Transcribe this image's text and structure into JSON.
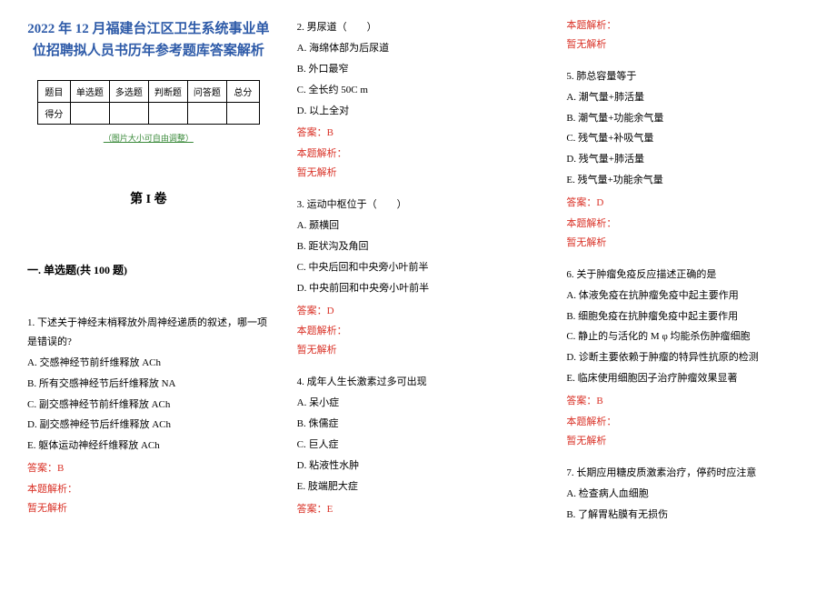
{
  "colors": {
    "title": "#2d5aa8",
    "caption": "#3a8a3a",
    "answer": "#d93025",
    "text": "#000000",
    "border": "#000000",
    "background": "#ffffff"
  },
  "title_line1": "2022 年 12 月福建台江区卫生系统事业单",
  "title_line2": "位招聘拟人员书历年参考题库答案解析",
  "score_table": {
    "cols": [
      "题目",
      "单选题",
      "多选题",
      "判断题",
      "问答题",
      "总分"
    ],
    "row2_label": "得分"
  },
  "caption": "（图片大小可自由调整）",
  "section_header": "第 I 卷",
  "subsection": "一. 单选题(共 100 题)",
  "answer_prefix": "答案：",
  "analysis_label": "本题解析：",
  "analysis_text": "暂无解析",
  "questions": [
    {
      "num": "1.",
      "text": "下述关于神经末梢释放外周神经递质的叙述，哪一项是错误的?",
      "options": [
        "A. 交感神经节前纤维释放 ACh",
        "B. 所有交感神经节后纤维释放 NA",
        "C. 副交感神经节前纤维释放 ACh",
        "D. 副交感神经节后纤维释放 ACh",
        "E. 躯体运动神经纤维释放 ACh"
      ],
      "answer": "B"
    },
    {
      "num": "2.",
      "text": "男尿道（　　）",
      "options": [
        "A. 海绵体部为后尿道",
        "B. 外口最窄",
        "C. 全长约 50C m",
        "D. 以上全对"
      ],
      "answer": "B"
    },
    {
      "num": "3.",
      "text": "运动中枢位于（　　）",
      "options": [
        "A. 颞横回",
        "B. 距状沟及角回",
        "C. 中央后回和中央旁小叶前半",
        "D. 中央前回和中央旁小叶前半"
      ],
      "answer": "D"
    },
    {
      "num": "4.",
      "text": "成年人生长激素过多可出现",
      "options": [
        "A. 呆小症",
        "B. 侏儒症",
        "C. 巨人症",
        "D. 粘液性水肿",
        "E. 肢端肥大症"
      ],
      "answer": "E"
    },
    {
      "num": "5.",
      "text": "肺总容量等于",
      "options": [
        "A. 潮气量+肺活量",
        "B. 潮气量+功能余气量",
        "C. 残气量+补吸气量",
        "D. 残气量+肺活量",
        "E. 残气量+功能余气量"
      ],
      "answer": "D"
    },
    {
      "num": "6.",
      "text": "关于肿瘤免疫反应描述正确的是",
      "options": [
        "A. 体液免疫在抗肿瘤免疫中起主要作用",
        "B. 细胞免疫在抗肿瘤免疫中起主要作用",
        "C. 静止的与活化的 M φ 均能杀伤肿瘤细胞",
        "D. 诊断主要依赖于肿瘤的特异性抗原的检测",
        "E. 临床使用细胞因子治疗肿瘤效果显著"
      ],
      "answer": "B"
    },
    {
      "num": "7.",
      "text": "长期应用糖皮质激素治疗，停药时应注意",
      "options": [
        "A. 检查病人血细胞",
        "B. 了解胃粘膜有无损伤"
      ],
      "answer": ""
    }
  ]
}
